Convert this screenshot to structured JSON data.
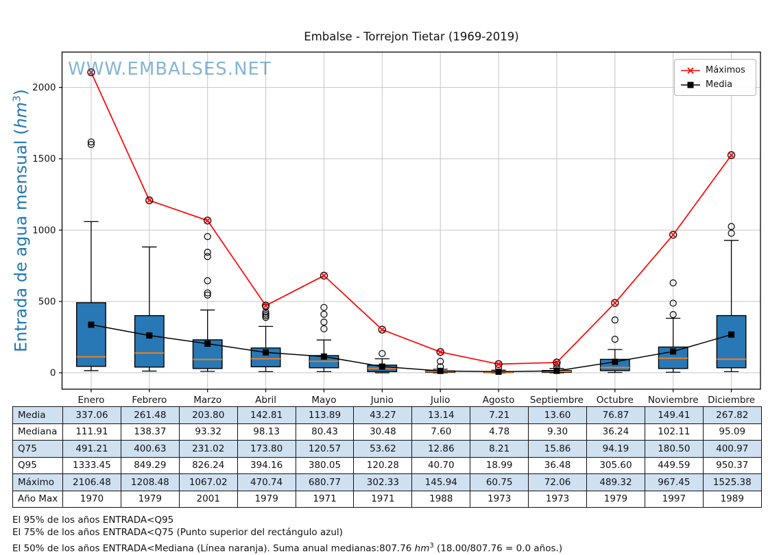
{
  "colors": {
    "box_fill": "#2878b5",
    "box_edge": "#000000",
    "median_line": "#ef7f20",
    "max_line": "#ff0000",
    "media_line": "#000000",
    "grid": "#c4c4c4",
    "ylabel": "#1f77b4",
    "watermark": "#7aa6c8",
    "table_shade": "#cfe0f1"
  },
  "chart_data": {
    "type": "boxplot",
    "title": "Embalse - Torrejon Tietar (1969-2019)",
    "watermark": "WWW.EMBALSES.NET",
    "ylabel": {
      "pre": "Entrada de agua mensual (",
      "unit": "hm",
      "sup": "3",
      "post": ")"
    },
    "grid": "on",
    "legend": {
      "position": "upper right",
      "items": [
        {
          "name": "Máximos"
        },
        {
          "name": "Media"
        }
      ]
    },
    "categories": [
      "Enero",
      "Febrero",
      "Marzo",
      "Abril",
      "Mayo",
      "Junio",
      "Julio",
      "Agosto",
      "Septiembre",
      "Octubre",
      "Noviembre",
      "Diciembre"
    ],
    "yticks": [
      0,
      500,
      1000,
      1500,
      2000
    ],
    "ylim": [
      -115,
      2248
    ],
    "series": [
      {
        "name": "Máximos",
        "marker": "circled-x",
        "values": [
          2106.48,
          1208.48,
          1067.02,
          470.74,
          680.77,
          302.33,
          145.94,
          60.75,
          72.06,
          489.32,
          967.45,
          1525.38
        ]
      },
      {
        "name": "Media",
        "marker": "square",
        "values": [
          337.06,
          261.48,
          203.8,
          142.81,
          113.89,
          43.27,
          13.14,
          7.21,
          13.6,
          76.87,
          149.41,
          267.82
        ]
      }
    ],
    "boxes": [
      {
        "q1": 45,
        "median": 111.91,
        "q3": 491.21,
        "whisker_low": 15,
        "whisker_high": 1060,
        "outliers": [
          1600,
          1618
        ]
      },
      {
        "q1": 40,
        "median": 138.37,
        "q3": 400.63,
        "whisker_low": 12,
        "whisker_high": 882,
        "outliers": []
      },
      {
        "q1": 30,
        "median": 93.32,
        "q3": 231.02,
        "whisker_low": 10,
        "whisker_high": 440,
        "outliers": [
          545,
          560,
          645,
          815,
          845,
          955
        ]
      },
      {
        "q1": 42,
        "median": 98.13,
        "q3": 173.8,
        "whisker_low": 8,
        "whisker_high": 325,
        "outliers": [
          388,
          400,
          412,
          425,
          462
        ]
      },
      {
        "q1": 35,
        "median": 80.43,
        "q3": 120.57,
        "whisker_low": 8,
        "whisker_high": 230,
        "outliers": [
          308,
          355,
          410,
          458
        ]
      },
      {
        "q1": 8,
        "median": 30.48,
        "q3": 53.62,
        "whisker_low": 0,
        "whisker_high": 98,
        "outliers": [
          135
        ]
      },
      {
        "q1": 3,
        "median": 7.6,
        "q3": 12.86,
        "whisker_low": 0,
        "whisker_high": 25,
        "outliers": [
          42,
          80
        ]
      },
      {
        "q1": 2,
        "median": 4.78,
        "q3": 8.21,
        "whisker_low": 0,
        "whisker_high": 18,
        "outliers": [
          35
        ]
      },
      {
        "q1": 3,
        "median": 9.3,
        "q3": 15.86,
        "whisker_low": 0,
        "whisker_high": 30,
        "outliers": [
          38,
          60
        ]
      },
      {
        "q1": 15,
        "median": 36.24,
        "q3": 94.19,
        "whisker_low": 2,
        "whisker_high": 163,
        "outliers": [
          235,
          370
        ]
      },
      {
        "q1": 30,
        "median": 102.11,
        "q3": 180.5,
        "whisker_low": 4,
        "whisker_high": 382,
        "outliers": [
          408,
          488,
          630
        ]
      },
      {
        "q1": 35,
        "median": 95.09,
        "q3": 400.97,
        "whisker_low": 8,
        "whisker_high": 928,
        "outliers": [
          978,
          1025
        ]
      }
    ]
  },
  "table": {
    "columns": [
      "Enero",
      "Febrero",
      "Marzo",
      "Abril",
      "Mayo",
      "Junio",
      "Julio",
      "Agosto",
      "Septiembre",
      "Octubre",
      "Noviembre",
      "Diciembre"
    ],
    "rows": [
      {
        "label": "Media",
        "values": [
          "337.06",
          "261.48",
          "203.80",
          "142.81",
          "113.89",
          "43.27",
          "13.14",
          "7.21",
          "13.60",
          "76.87",
          "149.41",
          "267.82"
        ]
      },
      {
        "label": "Mediana",
        "values": [
          "111.91",
          "138.37",
          "93.32",
          "98.13",
          "80.43",
          "30.48",
          "7.60",
          "4.78",
          "9.30",
          "36.24",
          "102.11",
          "95.09"
        ]
      },
      {
        "label": "Q75",
        "values": [
          "491.21",
          "400.63",
          "231.02",
          "173.80",
          "120.57",
          "53.62",
          "12.86",
          "8.21",
          "15.86",
          "94.19",
          "180.50",
          "400.97"
        ]
      },
      {
        "label": "Q95",
        "values": [
          "1333.45",
          "849.29",
          "826.24",
          "394.16",
          "380.05",
          "120.28",
          "40.70",
          "18.99",
          "36.48",
          "305.60",
          "449.59",
          "950.37"
        ]
      },
      {
        "label": "Máximo",
        "values": [
          "2106.48",
          "1208.48",
          "1067.02",
          "470.74",
          "680.77",
          "302.33",
          "145.94",
          "60.75",
          "72.06",
          "489.32",
          "967.45",
          "1525.38"
        ]
      },
      {
        "label": "Año Max",
        "values": [
          "1970",
          "1979",
          "2001",
          "1979",
          "1971",
          "1971",
          "1988",
          "1973",
          "1973",
          "1979",
          "1997",
          "1989"
        ]
      }
    ]
  },
  "footnotes": {
    "line1": "El 95% de los años ENTRADA<Q95",
    "line2": "El 75% de los años ENTRADA<Q75 (Punto superior del rectángulo azul)",
    "line3_pre": "El 50% de los años ENTRADA<Mediana (Línea naranja). Suma anual medianas:807.76 ",
    "line3_unit": "hm",
    "line3_sup": "3",
    "line3_post": " (18.00/807.76 = 0.0 años.)"
  }
}
